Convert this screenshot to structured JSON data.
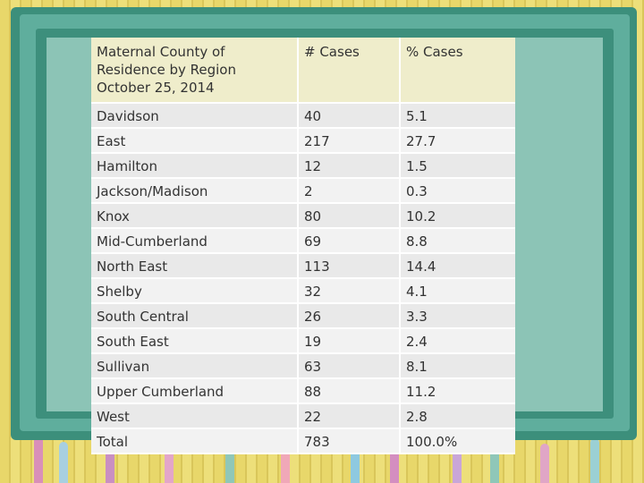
{
  "table": {
    "header": {
      "region": "Maternal County of Residence by Region October 25, 2014",
      "cases": "# Cases",
      "pct": "% Cases"
    },
    "rows": [
      {
        "region": "Davidson",
        "cases": "40",
        "pct": "5.1"
      },
      {
        "region": "East",
        "cases": "217",
        "pct": "27.7"
      },
      {
        "region": "Hamilton",
        "cases": "12",
        "pct": "1.5"
      },
      {
        "region": "Jackson/Madison",
        "cases": "2",
        "pct": "0.3"
      },
      {
        "region": "Knox",
        "cases": "80",
        "pct": "10.2"
      },
      {
        "region": "Mid-Cumberland",
        "cases": "69",
        "pct": "8.8"
      },
      {
        "region": "North East",
        "cases": "113",
        "pct": "14.4"
      },
      {
        "region": "Shelby",
        "cases": "32",
        "pct": "4.1"
      },
      {
        "region": "South Central",
        "cases": "26",
        "pct": "3.3"
      },
      {
        "region": "South East",
        "cases": "19",
        "pct": "2.4"
      },
      {
        "region": "Sullivan",
        "cases": "63",
        "pct": "8.1"
      },
      {
        "region": "Upper Cumberland",
        "cases": "88",
        "pct": "11.2"
      },
      {
        "region": "West",
        "cases": "22",
        "pct": "2.8"
      },
      {
        "region": "Total",
        "cases": "783",
        "pct": "100.0%"
      }
    ]
  },
  "theme": {
    "frame": "#3c8f7b",
    "board": "#8cc4b6",
    "background": "#e8d76a",
    "header_fill": "#efedcb"
  }
}
